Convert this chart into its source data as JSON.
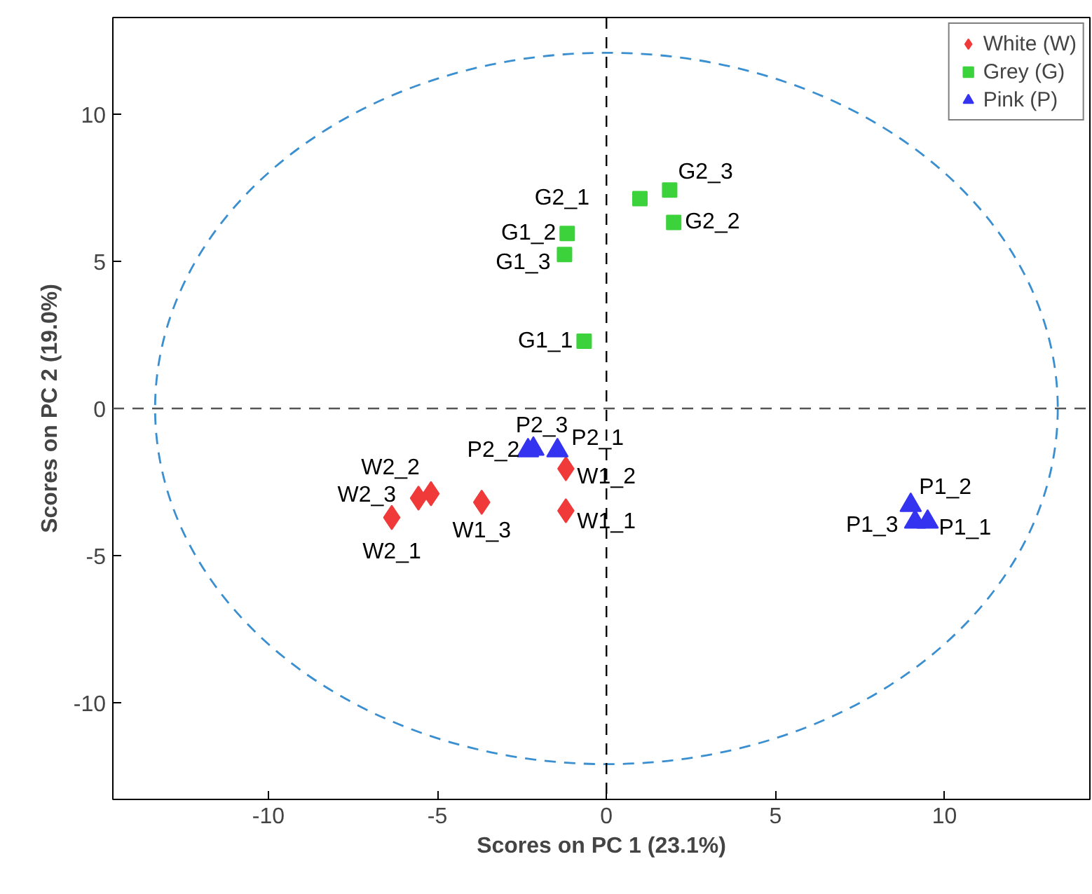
{
  "chart_data": {
    "type": "scatter",
    "xlabel": "Scores on PC 1 (23.1%)",
    "ylabel": "Scores on PC 2 (19.0%)",
    "xlim": [
      -14.6,
      14.3
    ],
    "ylim": [
      -13.3,
      13.3
    ],
    "xticks": [
      -10,
      -5,
      0,
      5,
      10
    ],
    "yticks": [
      -10,
      -5,
      0,
      5,
      10
    ],
    "grid": false,
    "legend": "top right",
    "series": [
      {
        "name": "White (W)",
        "color": "#f03a3a",
        "marker": "diamond",
        "x": [
          -1.2,
          -1.2,
          -3.69,
          -5.19,
          -5.56,
          -6.35
        ],
        "values": [
          -2.05,
          -3.48,
          -3.19,
          -2.9,
          -3.05,
          -3.71
        ]
      },
      {
        "name": "Grey (G)",
        "color": "#3cd23c",
        "marker": "square",
        "x": [
          0.99,
          1.87,
          1.99,
          -1.16,
          -1.24,
          -0.66
        ],
        "values": [
          7.14,
          7.43,
          6.33,
          5.95,
          5.24,
          2.29
        ]
      },
      {
        "name": "Pink (P)",
        "color": "#3434f0",
        "marker": "triangle",
        "x": [
          -2.32,
          -2.16,
          -1.45,
          9.0,
          9.13,
          9.5
        ],
        "values": [
          -1.43,
          -1.38,
          -1.43,
          -3.29,
          -3.86,
          -3.86
        ]
      }
    ],
    "ref_lines": [
      {
        "axis": "x",
        "value": 0,
        "color": "#000000",
        "line_style": "dashed"
      },
      {
        "axis": "y",
        "value": 0,
        "color": "#555555",
        "line_style": "dashed"
      }
    ],
    "annotations": [
      {
        "text": "W1_2",
        "x": -1.2,
        "y": -2.05
      },
      {
        "text": "W1_1",
        "x": -1.2,
        "y": -3.48
      },
      {
        "text": "W1_3",
        "x": -3.69,
        "y": -3.19
      },
      {
        "text": "W2_2",
        "x": -5.19,
        "y": -2.9
      },
      {
        "text": "W2_3",
        "x": -5.56,
        "y": -3.05
      },
      {
        "text": "W2_1",
        "x": -6.35,
        "y": -3.71
      },
      {
        "text": "G2_1",
        "x": 0.99,
        "y": 7.14
      },
      {
        "text": "G2_3",
        "x": 1.87,
        "y": 7.43
      },
      {
        "text": "G2_2",
        "x": 1.99,
        "y": 6.33
      },
      {
        "text": "G1_2",
        "x": -1.16,
        "y": 5.95
      },
      {
        "text": "G1_3",
        "x": -1.24,
        "y": 5.24
      },
      {
        "text": "G1_1",
        "x": -0.66,
        "y": 2.29
      },
      {
        "text": "P2_2",
        "x": -2.32,
        "y": -1.43
      },
      {
        "text": "P2_3",
        "x": -2.16,
        "y": -1.38
      },
      {
        "text": "P2_1",
        "x": -1.45,
        "y": -1.43
      },
      {
        "text": "P1_2",
        "x": 9.0,
        "y": -3.29
      },
      {
        "text": "P1_3",
        "x": 9.13,
        "y": -3.86
      },
      {
        "text": "P1_1",
        "x": 9.5,
        "y": -3.86
      }
    ]
  }
}
